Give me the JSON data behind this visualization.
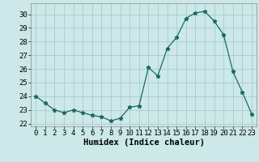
{
  "x": [
    0,
    1,
    2,
    3,
    4,
    5,
    6,
    7,
    8,
    9,
    10,
    11,
    12,
    13,
    14,
    15,
    16,
    17,
    18,
    19,
    20,
    21,
    22,
    23
  ],
  "y": [
    24.0,
    23.5,
    23.0,
    22.8,
    23.0,
    22.8,
    22.6,
    22.5,
    22.2,
    22.4,
    23.2,
    23.3,
    26.1,
    25.5,
    27.5,
    28.3,
    29.7,
    30.1,
    30.2,
    29.5,
    28.5,
    25.8,
    24.3,
    22.7
  ],
  "line_color": "#1a6b5e",
  "marker": "*",
  "marker_size": 3.5,
  "bg_color": "#cce8e8",
  "grid_color": "#aacccc",
  "xlabel": "Humidex (Indice chaleur)",
  "xlim": [
    -0.5,
    23.5
  ],
  "ylim": [
    21.8,
    30.8
  ],
  "yticks": [
    22,
    23,
    24,
    25,
    26,
    27,
    28,
    29,
    30
  ],
  "xticks": [
    0,
    1,
    2,
    3,
    4,
    5,
    6,
    7,
    8,
    9,
    10,
    11,
    12,
    13,
    14,
    15,
    16,
    17,
    18,
    19,
    20,
    21,
    22,
    23
  ],
  "tick_fontsize": 6.5,
  "xlabel_fontsize": 7.5
}
